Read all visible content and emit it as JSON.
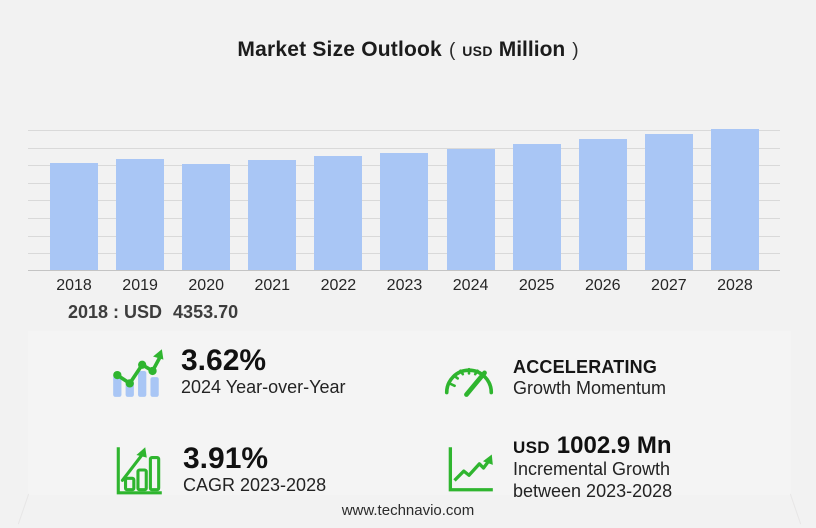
{
  "title": {
    "main": "Market Size Outlook",
    "paren_open": "(",
    "currency": "USD",
    "unit": "Million",
    "paren_close": ")"
  },
  "chart_data": {
    "type": "bar",
    "title": "Market Size Outlook",
    "unit": "USD Million",
    "categories": [
      "2018",
      "2019",
      "2020",
      "2021",
      "2022",
      "2023",
      "2024",
      "2025",
      "2026",
      "2027",
      "2028"
    ],
    "values": [
      4353.7,
      4515,
      4310,
      4475,
      4635,
      4745,
      4916,
      5135,
      5330,
      5545,
      5748
    ],
    "ylim": [
      0,
      5900
    ],
    "xlabel": "",
    "ylabel": "",
    "grid": true,
    "legend": "none",
    "bar_color": "#a9c6f5",
    "annotation": {
      "label": "2018 : USD",
      "value": "4353.70"
    }
  },
  "stats": [
    {
      "icon": "bar-trend-icon",
      "value": "3.62%",
      "label": "2024 Year-over-Year"
    },
    {
      "icon": "gauge-icon",
      "value": "ACCELERATING",
      "label": "Growth Momentum"
    },
    {
      "icon": "growth-bars-icon",
      "value": "3.91%",
      "label": "CAGR 2023-2028"
    },
    {
      "icon": "growth-line-icon",
      "value_prefix": "USD",
      "value": "1002.9 Mn",
      "label": "Incremental Growth",
      "label2": "between 2023-2028"
    }
  ],
  "footer": {
    "website": "www.technavio.com"
  },
  "colors": {
    "background": "#f2f2f2",
    "bar_blue": "#a9c6f5",
    "accent_green": "#2fb52f",
    "gridline": "#d9d9d9",
    "text_dark": "#1c1c1c"
  }
}
